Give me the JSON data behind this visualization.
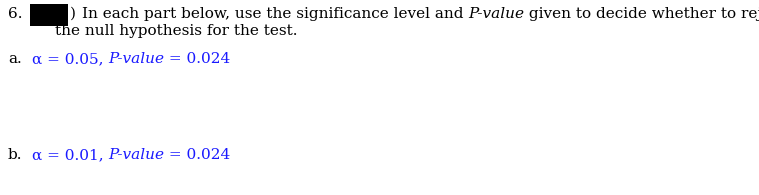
{
  "background_color": "#ffffff",
  "text_color": "#1a1aff",
  "black_color": "#000000",
  "number_label": "6.",
  "line1_part1": "In each part below, use the significance level and ",
  "line1_italic": "P-value",
  "line1_part2": " given to decide whether to reject",
  "line2_text": "the null hypothesis for the test.",
  "part_a_label": "a.",
  "part_a_pre": "α = 0.05, ",
  "part_a_italic": "P-value",
  "part_a_post": " = 0.024",
  "part_b_label": "b.",
  "part_b_pre": "α = 0.01, ",
  "part_b_italic": "P-value",
  "part_b_post": " = 0.024",
  "font_size": 11.0,
  "font_family": "serif"
}
